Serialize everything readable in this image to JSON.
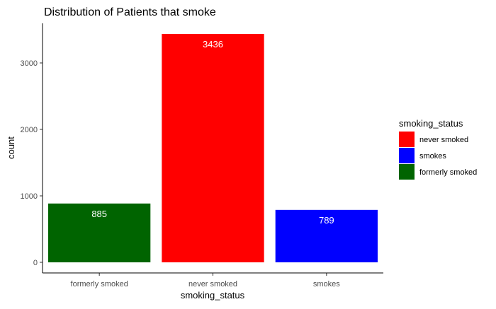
{
  "chart_data": {
    "type": "bar",
    "title": "Distribution of Patients that smoke",
    "xlabel": "smoking_status",
    "ylabel": "count",
    "categories": [
      "formerly smoked",
      "never smoked",
      "smokes"
    ],
    "values": [
      885,
      3436,
      789
    ],
    "colors": [
      "#006400",
      "#ff0000",
      "#0000ff"
    ],
    "ylim": [
      0,
      3600
    ],
    "yticks": [
      0,
      1000,
      2000,
      3000
    ],
    "grid": false,
    "legend": {
      "title": "smoking_status",
      "position": "right",
      "entries": [
        {
          "label": "never smoked",
          "color": "#ff0000"
        },
        {
          "label": "smokes",
          "color": "#0000ff"
        },
        {
          "label": "formerly smoked",
          "color": "#006400"
        }
      ]
    }
  }
}
